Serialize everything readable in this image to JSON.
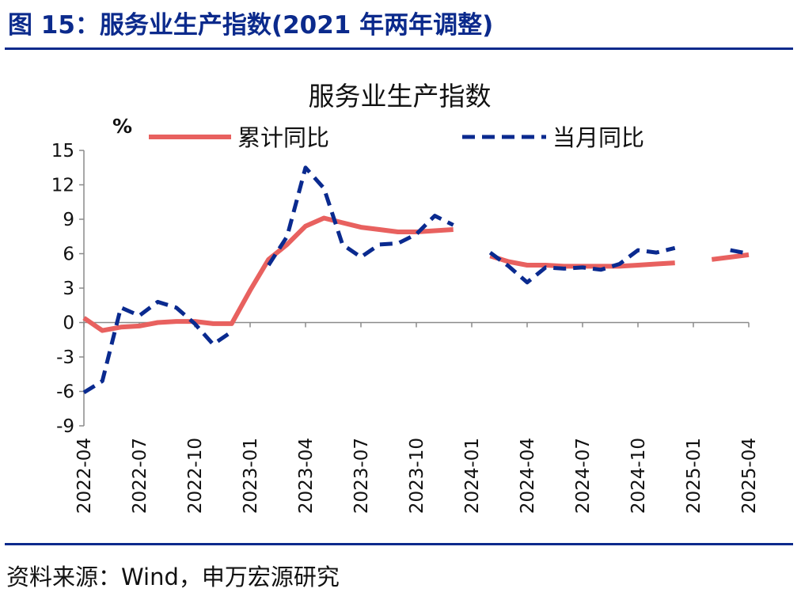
{
  "figure_title": "图 15：服务业生产指数(2021 年两年调整)",
  "source": "资料来源：Wind，申万宏源研究",
  "colors": {
    "accent": "#0b2a8c",
    "cumulative": "#e8615f",
    "monthly": "#0a2a8f"
  },
  "chart_data": {
    "type": "line",
    "title": "服务业生产指数",
    "ylabel": "%",
    "xlabel": "",
    "ylim": [
      -9,
      15
    ],
    "yticks": [
      15,
      12,
      9,
      6,
      3,
      0,
      -3,
      -6,
      -9
    ],
    "legend_position": "top",
    "grid": false,
    "x": [
      "2022-04",
      "2022-05",
      "2022-06",
      "2022-07",
      "2022-08",
      "2022-09",
      "2022-10",
      "2022-11",
      "2022-12",
      "2023-01",
      "2023-02",
      "2023-03",
      "2023-04",
      "2023-05",
      "2023-06",
      "2023-07",
      "2023-08",
      "2023-09",
      "2023-10",
      "2023-11",
      "2023-12",
      "2024-01",
      "2024-02",
      "2024-03",
      "2024-04",
      "2024-05",
      "2024-06",
      "2024-07",
      "2024-08",
      "2024-09",
      "2024-10",
      "2024-11",
      "2024-12",
      "2025-01",
      "2025-02",
      "2025-03",
      "2025-04"
    ],
    "xtick_labels": [
      "2022-04",
      "2022-07",
      "2022-10",
      "2023-01",
      "2023-04",
      "2023-07",
      "2023-10",
      "2024-01",
      "2024-04",
      "2024-07",
      "2024-10",
      "2025-01",
      "2025-04"
    ],
    "series": [
      {
        "name": "累计同比",
        "style": "solid",
        "values": [
          0.4,
          -0.7,
          -0.4,
          -0.3,
          0.0,
          0.1,
          0.1,
          -0.1,
          -0.1,
          2.8,
          5.5,
          6.8,
          8.4,
          9.1,
          8.7,
          8.3,
          8.1,
          7.9,
          7.9,
          8.0,
          8.1,
          null,
          5.8,
          5.3,
          5.0,
          5.0,
          4.9,
          4.9,
          4.9,
          4.9,
          5.0,
          5.1,
          5.2,
          null,
          5.5,
          5.7,
          5.9
        ]
      },
      {
        "name": "当月同比",
        "style": "dashed",
        "values": [
          -6.1,
          -5.1,
          1.3,
          0.6,
          1.8,
          1.3,
          -0.1,
          -1.9,
          -0.8,
          null,
          5.0,
          7.5,
          13.5,
          11.7,
          6.8,
          5.7,
          6.8,
          6.9,
          7.7,
          9.3,
          8.5,
          null,
          6.1,
          4.9,
          3.5,
          4.8,
          4.7,
          4.8,
          4.6,
          5.1,
          6.3,
          6.1,
          6.5,
          null,
          null,
          6.3,
          6.0
        ]
      }
    ]
  }
}
